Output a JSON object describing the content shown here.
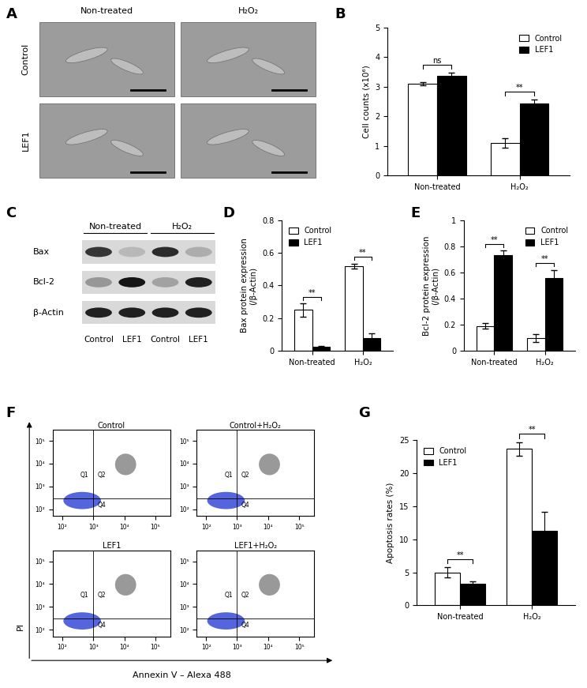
{
  "chart_data": [
    {
      "type": "image_grid",
      "panel_label": "A",
      "columns": [
        "Non-treated",
        "H₂O₂"
      ],
      "rows": [
        "Control",
        "LEF1"
      ]
    },
    {
      "type": "bar",
      "panel_label": "B",
      "ylabel": "Cell counts (x10⁶)",
      "categories": [
        "Non-treated",
        "H₂O₂"
      ],
      "series": [
        {
          "name": "Control",
          "color": "#ffffff",
          "values": [
            3.1,
            1.1
          ],
          "errors": [
            0.05,
            0.15
          ]
        },
        {
          "name": "LEF1",
          "color": "#000000",
          "values": [
            3.38,
            2.42
          ],
          "errors": [
            0.1,
            0.15
          ]
        }
      ],
      "significance": [
        "ns",
        "**"
      ],
      "ylim": [
        0,
        5
      ],
      "yticks": [
        0,
        1,
        2,
        3,
        4,
        5
      ],
      "legend": "upper right"
    },
    {
      "type": "western_blot",
      "panel_label": "C",
      "groups": [
        "Non-treated",
        "H₂O₂"
      ],
      "lanes": [
        "Control",
        "LEF1",
        "Control",
        "LEF1"
      ],
      "bands": [
        {
          "name": "Bax",
          "intensity": [
            0.75,
            0.15,
            0.8,
            0.2
          ]
        },
        {
          "name": "Bcl-2",
          "intensity": [
            0.3,
            0.9,
            0.25,
            0.85
          ]
        },
        {
          "name": "β-Actin",
          "intensity": [
            0.85,
            0.85,
            0.85,
            0.85
          ]
        }
      ]
    },
    {
      "type": "bar",
      "panel_label": "D",
      "ylabel": "Bax protein expression\n(/β-Actin)",
      "categories": [
        "Non-treated",
        "H₂O₂"
      ],
      "series": [
        {
          "name": "Control",
          "color": "#ffffff",
          "values": [
            0.25,
            0.52
          ],
          "errors": [
            0.04,
            0.015
          ]
        },
        {
          "name": "LEF1",
          "color": "#000000",
          "values": [
            0.025,
            0.08
          ],
          "errors": [
            0.005,
            0.025
          ]
        }
      ],
      "significance": [
        "**",
        "**"
      ],
      "ylim": [
        0,
        0.8
      ],
      "yticks": [
        0,
        0.2,
        0.4,
        0.6,
        0.8
      ],
      "legend": "upper left"
    },
    {
      "type": "bar",
      "panel_label": "E",
      "ylabel": "Bcl-2 protein expression\n(/β-Actin)",
      "categories": [
        "Non-treated",
        "H₂O₂"
      ],
      "series": [
        {
          "name": "Control",
          "color": "#ffffff",
          "values": [
            0.19,
            0.1
          ],
          "errors": [
            0.02,
            0.03
          ]
        },
        {
          "name": "LEF1",
          "color": "#000000",
          "values": [
            0.73,
            0.56
          ],
          "errors": [
            0.04,
            0.06
          ]
        }
      ],
      "significance": [
        "**",
        "**"
      ],
      "ylim": [
        0,
        1
      ],
      "yticks": [
        0,
        0.2,
        0.4,
        0.6,
        0.8,
        1
      ],
      "legend": "upper right"
    },
    {
      "type": "flow_cytometry",
      "panel_label": "F",
      "xlabel": "Annexin V – Alexa 488",
      "ylabel": "PI",
      "log": true,
      "xlim": [
        50,
        300000
      ],
      "ylim": [
        50,
        300000
      ],
      "xticks": [
        {
          "value": 100,
          "label": "10²"
        },
        {
          "value": 1000,
          "label": "10³"
        },
        {
          "value": 10000,
          "label": "10⁴"
        },
        {
          "value": 100000,
          "label": "10⁵"
        }
      ],
      "yticks": [
        {
          "value": 100,
          "label": "10²"
        },
        {
          "value": 1000,
          "label": "10³"
        },
        {
          "value": 10000,
          "label": "10⁴"
        },
        {
          "value": 100000,
          "label": "10⁵"
        }
      ],
      "gates": {
        "x": 1000,
        "y": 300
      },
      "quadrant_labels": [
        "Q1",
        "Q2",
        "Q4"
      ],
      "plots": [
        "Control",
        "Control+H₂O₂",
        "LEF1",
        "LEF1+H₂O₂"
      ]
    },
    {
      "type": "bar",
      "panel_label": "G",
      "ylabel": "Apoptosis rates (%)",
      "categories": [
        "Non-treated",
        "H₂O₂"
      ],
      "series": [
        {
          "name": "Control",
          "color": "#ffffff",
          "values": [
            5.0,
            23.7
          ],
          "errors": [
            0.8,
            1.0
          ]
        },
        {
          "name": "LEF1",
          "color": "#000000",
          "values": [
            3.3,
            11.3
          ],
          "errors": [
            0.3,
            2.9
          ]
        }
      ],
      "significance": [
        "**",
        "**"
      ],
      "ylim": [
        0,
        25
      ],
      "yticks": [
        0,
        5,
        10,
        15,
        20,
        25
      ],
      "legend": "upper left"
    }
  ]
}
